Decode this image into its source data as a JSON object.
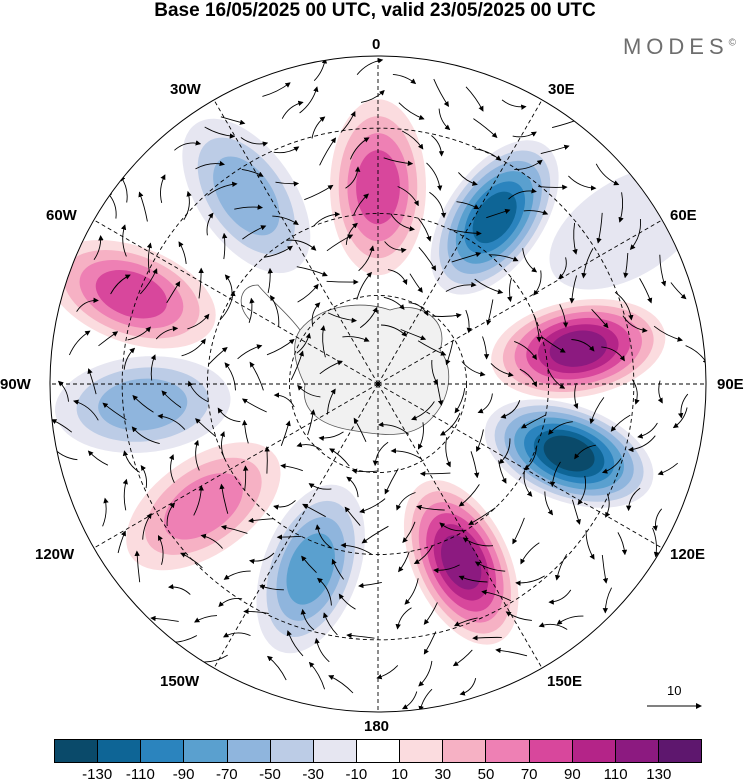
{
  "title": "Base 16/05/2025 00 UTC, valid 23/05/2025 00 UTC",
  "brand": "MODES",
  "brand_mark": "©",
  "longitude_labels": {
    "lon0": "0",
    "lon30e": "30E",
    "lon60e": "60E",
    "lon90e": "90E",
    "lon120e": "120E",
    "lon150e": "150E",
    "lon180": "180",
    "lon150w": "150W",
    "lon120w": "120W",
    "lon90w": "90W",
    "lon60w": "60W",
    "lon30w": "30W"
  },
  "reference_vector": {
    "label": "10"
  },
  "colorbar": {
    "labels": [
      "-130",
      "-110",
      "-90",
      "-70",
      "-50",
      "-30",
      "-10",
      "10",
      "30",
      "50",
      "70",
      "90",
      "110",
      "130"
    ],
    "colors": [
      "#0a4a6a",
      "#0e6596",
      "#2b84be",
      "#5aa0cf",
      "#8fb5dd",
      "#bccce6",
      "#e6e6f1",
      "#ffffff",
      "#fbdcdf",
      "#f6b1c4",
      "#ee80b4",
      "#d8479c",
      "#b42488",
      "#8c1a80",
      "#5e176e"
    ]
  },
  "anomaly_centers": [
    {
      "name": "center-lon0",
      "lon": 0,
      "lat_radius": 0.6,
      "value": 90
    },
    {
      "name": "center-lon35e",
      "lon": 35,
      "lat_radius": 0.62,
      "value": -130
    },
    {
      "name": "center-lon80e",
      "lon": 80,
      "lat_radius": 0.62,
      "value": 130
    },
    {
      "name": "center-lon110e",
      "lon": 110,
      "lat_radius": 0.62,
      "value": -140
    },
    {
      "name": "center-lon155e",
      "lon": 155,
      "lat_radius": 0.6,
      "value": 130
    },
    {
      "name": "center-lon160w",
      "lon": -160,
      "lat_radius": 0.6,
      "value": -90
    },
    {
      "name": "center-lon125w",
      "lon": -125,
      "lat_radius": 0.65,
      "value": 70
    },
    {
      "name": "center-lon95w",
      "lon": -95,
      "lat_radius": 0.72,
      "value": -70
    },
    {
      "name": "center-lon70w",
      "lon": -70,
      "lat_radius": 0.8,
      "value": 90
    },
    {
      "name": "center-lon35w",
      "lon": -35,
      "lat_radius": 0.7,
      "value": -70
    },
    {
      "name": "center-lon60e-weak",
      "lon": 58,
      "lat_radius": 0.9,
      "value": -30
    }
  ]
}
